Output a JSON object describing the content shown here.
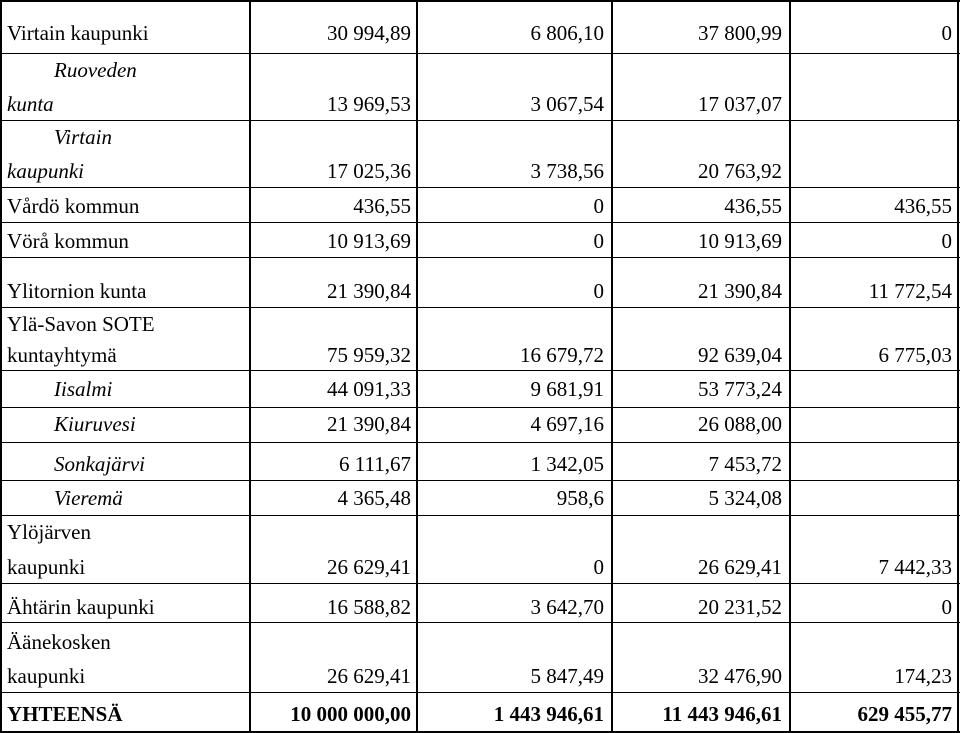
{
  "rows": [
    {
      "name": [
        "Virtain kaupunki"
      ],
      "cols": [
        "30 994,89",
        "6 806,10",
        "37 800,99",
        "0"
      ],
      "style": "normal"
    },
    {
      "name": [
        "Ruoveden",
        "kunta"
      ],
      "cols": [
        "13 969,53",
        "3 067,54",
        "17 037,07",
        ""
      ],
      "style": "italic"
    },
    {
      "name": [
        "Virtain",
        "kaupunki"
      ],
      "cols": [
        "17 025,36",
        "3 738,56",
        "20 763,92",
        ""
      ],
      "style": "italic"
    },
    {
      "name": [
        "Vårdö kommun"
      ],
      "cols": [
        "436,55",
        "0",
        "436,55",
        "436,55"
      ],
      "style": "normal"
    },
    {
      "name": [
        "Vörå kommun"
      ],
      "cols": [
        "10 913,69",
        "0",
        "10 913,69",
        "0"
      ],
      "style": "normal"
    },
    {
      "name": [
        "Ylitornion kunta"
      ],
      "cols": [
        "21 390,84",
        "0",
        "21 390,84",
        "11 772,54"
      ],
      "style": "normal"
    },
    {
      "name": [
        "Ylä-Savon SOTE",
        "kuntayhtymä"
      ],
      "cols": [
        "75 959,32",
        "16 679,72",
        "92 639,04",
        "6 775,03"
      ],
      "style": "normal"
    },
    {
      "name": [
        "Iisalmi"
      ],
      "cols": [
        "44 091,33",
        "9 681,91",
        "53 773,24",
        ""
      ],
      "style": "italic"
    },
    {
      "name": [
        "Kiuruvesi"
      ],
      "cols": [
        "21 390,84",
        "4 697,16",
        "26 088,00",
        ""
      ],
      "style": "italic"
    },
    {
      "name": [
        "Sonkajärvi"
      ],
      "cols": [
        "6 111,67",
        "1 342,05",
        "7 453,72",
        ""
      ],
      "style": "italic"
    },
    {
      "name": [
        "Vieremä"
      ],
      "cols": [
        "4 365,48",
        "958,6",
        "5 324,08",
        ""
      ],
      "style": "italic"
    },
    {
      "name": [
        "Ylöjärven",
        "kaupunki"
      ],
      "cols": [
        "26 629,41",
        "0",
        "26 629,41",
        "7 442,33"
      ],
      "style": "normal"
    },
    {
      "name": [
        "Ähtärin kaupunki"
      ],
      "cols": [
        "16 588,82",
        "3 642,70",
        "20 231,52",
        "0"
      ],
      "style": "normal"
    },
    {
      "name": [
        "Äänekosken",
        "kaupunki"
      ],
      "cols": [
        "26 629,41",
        "5 847,49",
        "32 476,90",
        "174,23"
      ],
      "style": "normal"
    },
    {
      "name": [
        "YHTEENSÄ"
      ],
      "cols": [
        "10 000 000,00",
        "1 443 946,61",
        "11 443 946,61",
        "629 455,77"
      ],
      "style": "bold"
    }
  ]
}
